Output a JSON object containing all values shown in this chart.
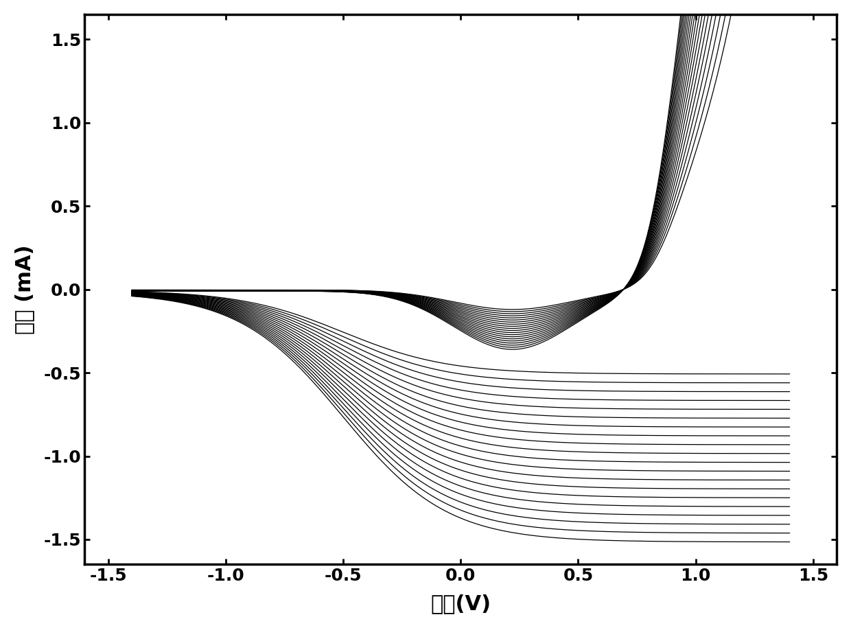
{
  "xlabel": "电压(V)",
  "ylabel": "电流 (mA)",
  "xlim": [
    -1.6,
    1.6
  ],
  "ylim": [
    -1.65,
    1.65
  ],
  "xticks": [
    -1.5,
    -1.0,
    -0.5,
    0.0,
    0.5,
    1.0,
    1.5
  ],
  "yticks": [
    -1.5,
    -1.0,
    -0.5,
    0.0,
    0.5,
    1.0,
    1.5
  ],
  "xtick_labels": [
    "-1.5",
    "-1.0",
    "-0.5",
    "0.0",
    "0.5",
    "1.0",
    "1.5"
  ],
  "ytick_labels": [
    "-1.5",
    "-1.0",
    "-0.5",
    "0.0",
    "0.5",
    "1.0",
    "1.5"
  ],
  "num_cycles": 20,
  "line_color": "#000000",
  "background_color": "#ffffff",
  "linewidth": 0.9,
  "xlabel_fontsize": 22,
  "ylabel_fontsize": 22,
  "tick_fontsize": 18,
  "figsize": [
    12.4,
    9.15
  ],
  "dpi": 100
}
